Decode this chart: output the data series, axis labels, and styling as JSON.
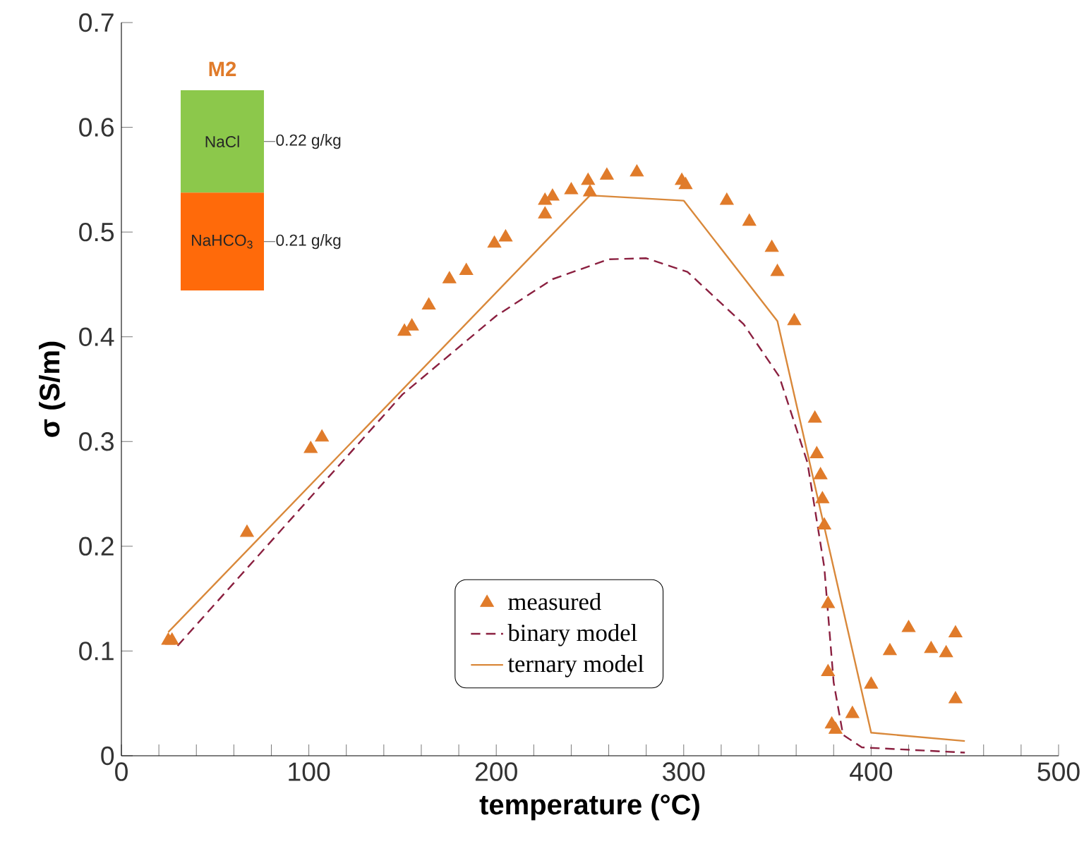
{
  "chart_data": [
    {
      "type": "scatter",
      "xlabel": "temperature (°C)",
      "ylabel": "σ (S/m)",
      "xlim": [
        0,
        500
      ],
      "ylim": [
        0,
        0.7
      ],
      "xticks": [
        0,
        100,
        200,
        300,
        400,
        500
      ],
      "yticks": [
        0,
        0.1,
        0.2,
        0.3,
        0.4,
        0.5,
        0.6,
        0.7
      ],
      "legend": "bottom",
      "series": [
        {
          "name": "measured",
          "type": "scatter",
          "marker": "triangle",
          "color": "#e07b2a",
          "x": [
            25,
            27,
            67,
            101,
            107,
            151,
            155,
            164,
            175,
            184,
            199,
            205,
            226,
            226,
            230,
            240,
            249,
            250,
            259,
            275,
            299,
            301,
            323,
            335,
            347,
            350,
            359,
            370,
            371,
            373,
            374,
            375,
            377,
            377,
            379,
            381,
            390,
            400,
            410,
            420,
            432,
            440,
            445,
            445
          ],
          "values": [
            0.11,
            0.11,
            0.213,
            0.293,
            0.304,
            0.405,
            0.41,
            0.43,
            0.455,
            0.463,
            0.489,
            0.495,
            0.517,
            0.53,
            0.534,
            0.54,
            0.549,
            0.538,
            0.554,
            0.557,
            0.549,
            0.545,
            0.53,
            0.51,
            0.485,
            0.462,
            0.415,
            0.322,
            0.288,
            0.268,
            0.245,
            0.22,
            0.145,
            0.08,
            0.03,
            0.025,
            0.04,
            0.068,
            0.1,
            0.122,
            0.102,
            0.098,
            0.117,
            0.054
          ]
        },
        {
          "name": "binary model",
          "type": "line",
          "line_style": "dashed",
          "color": "#8b2040",
          "x": [
            30,
            60,
            100,
            150,
            200,
            230,
            260,
            280,
            302,
            332,
            351,
            366,
            375,
            380,
            385,
            395,
            450
          ],
          "values": [
            0.105,
            0.165,
            0.245,
            0.345,
            0.42,
            0.455,
            0.474,
            0.475,
            0.462,
            0.412,
            0.362,
            0.28,
            0.18,
            0.07,
            0.02,
            0.008,
            0.003
          ]
        },
        {
          "name": "ternary model",
          "type": "line",
          "line_style": "solid",
          "color": "#d9883a",
          "x": [
            25,
            250,
            300,
            350,
            400,
            450
          ],
          "values": [
            0.118,
            0.535,
            0.53,
            0.415,
            0.022,
            0.014
          ]
        }
      ]
    },
    {
      "type": "bar",
      "title": "M2",
      "stacked": true,
      "tick_labels": false,
      "categories": [
        null
      ],
      "series": [
        {
          "name": "NaHCO$_{3}$",
          "color": "#ff6a0a",
          "values": [
            0.21
          ],
          "value_labels": [
            "0.21 g/kg"
          ]
        },
        {
          "name": "NaCl",
          "color": "#8cc84b",
          "values": [
            0.22
          ],
          "value_labels": [
            "0.22 g/kg"
          ]
        }
      ]
    }
  ]
}
